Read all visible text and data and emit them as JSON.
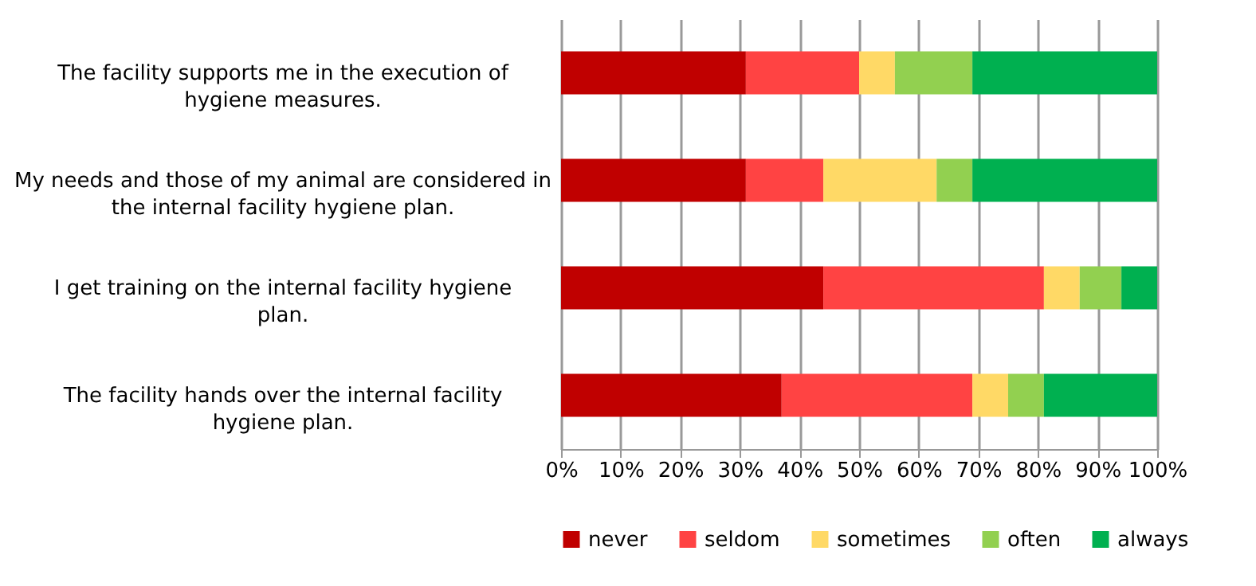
{
  "chart_data": {
    "type": "bar",
    "orientation": "horizontal",
    "stacked": true,
    "categories": [
      "The facility supports me in the execution of hygiene measures.",
      "My needs and those of my animal are considered in the  internal facility hygiene plan.",
      "I get training on the internal facility hygiene plan.",
      "The facility hands over the internal facility hygiene plan."
    ],
    "series": [
      {
        "name": "never",
        "color": "#c00000",
        "values": [
          31,
          31,
          44,
          37
        ]
      },
      {
        "name": "seldom",
        "color": "#ff4343",
        "values": [
          19,
          13,
          37,
          32
        ]
      },
      {
        "name": "sometimes",
        "color": "#ffd966",
        "values": [
          6,
          19,
          6,
          6
        ]
      },
      {
        "name": "often",
        "color": "#92d050",
        "values": [
          13,
          6,
          7,
          6
        ]
      },
      {
        "name": "always",
        "color": "#00b050",
        "values": [
          31,
          31,
          6,
          19
        ]
      }
    ],
    "xlim": [
      0,
      100
    ],
    "xticks": [
      {
        "value": 0,
        "label": "0%"
      },
      {
        "value": 10,
        "label": "10%"
      },
      {
        "value": 20,
        "label": "20%"
      },
      {
        "value": 30,
        "label": "30%"
      },
      {
        "value": 40,
        "label": "40%"
      },
      {
        "value": 50,
        "label": "50%"
      },
      {
        "value": 60,
        "label": "60%"
      },
      {
        "value": 70,
        "label": "70%"
      },
      {
        "value": 80,
        "label": "80%"
      },
      {
        "value": 90,
        "label": "90%"
      },
      {
        "value": 100,
        "label": "100%"
      }
    ],
    "grid": "x",
    "legend": "bottom"
  }
}
